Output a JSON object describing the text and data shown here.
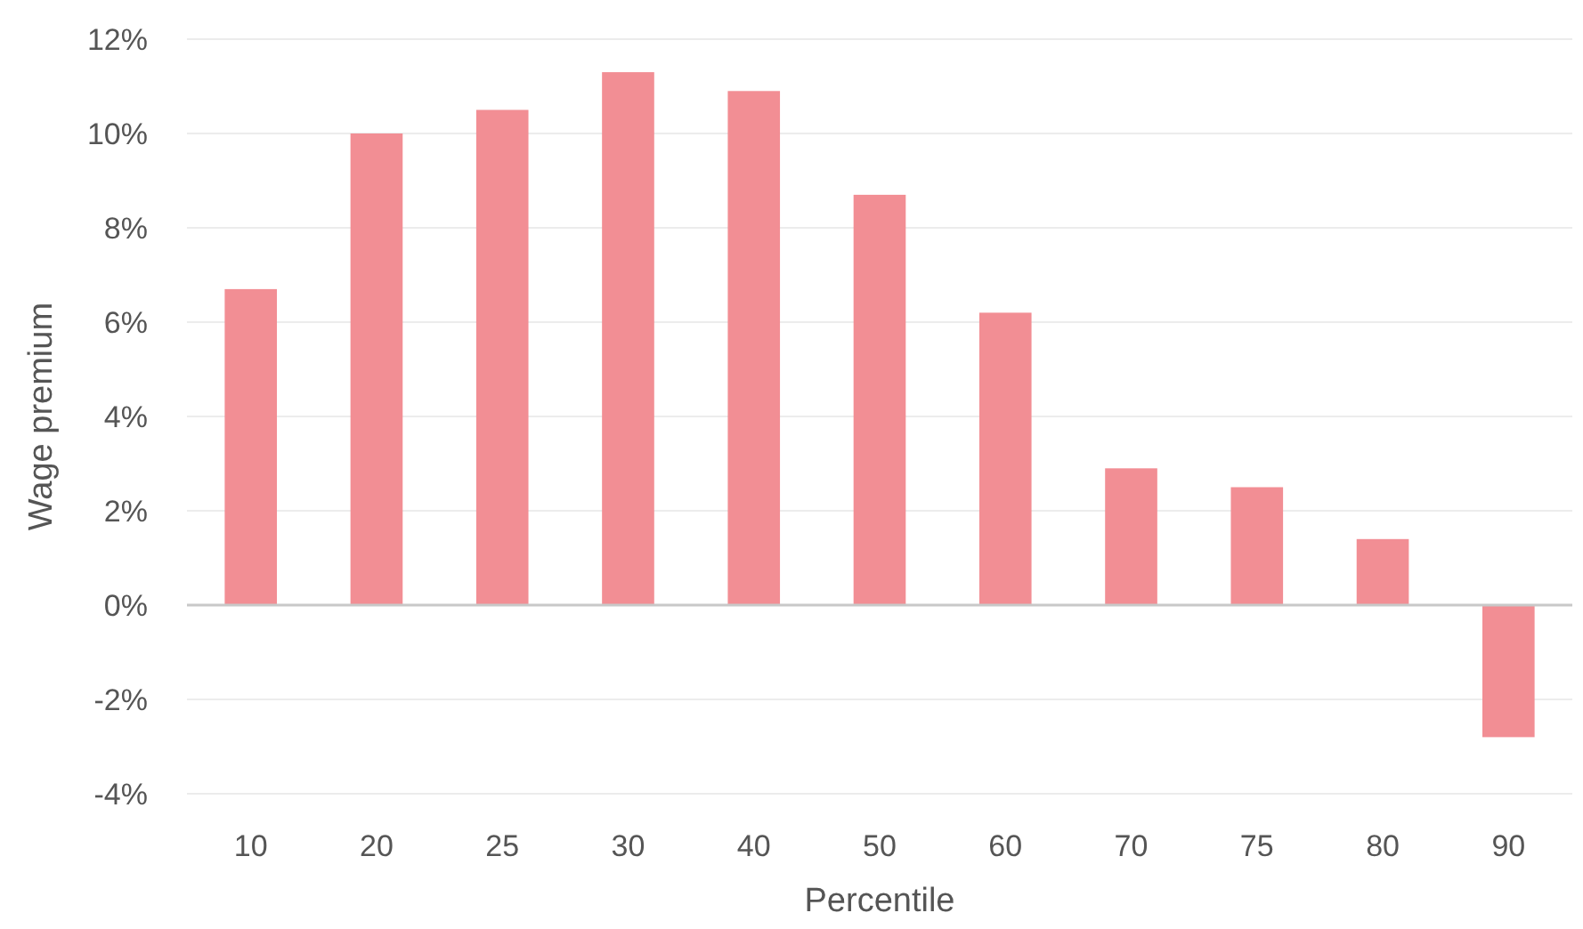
{
  "chart_data": {
    "type": "bar",
    "xlabel": "Percentile",
    "ylabel": "Wage premium",
    "categories": [
      "10",
      "20",
      "25",
      "30",
      "40",
      "50",
      "60",
      "70",
      "75",
      "80",
      "90"
    ],
    "values": [
      6.7,
      10.0,
      10.5,
      11.3,
      10.9,
      8.7,
      6.2,
      2.9,
      2.5,
      1.4,
      -2.8
    ],
    "color": "#f28e94",
    "ylim": [
      -4,
      12
    ],
    "yticks": [
      {
        "value": -4,
        "label": "-4%"
      },
      {
        "value": -2,
        "label": "-2%"
      },
      {
        "value": 0,
        "label": "0%"
      },
      {
        "value": 2,
        "label": "2%"
      },
      {
        "value": 4,
        "label": "4%"
      },
      {
        "value": 6,
        "label": "6%"
      },
      {
        "value": 8,
        "label": "8%"
      },
      {
        "value": 10,
        "label": "10%"
      },
      {
        "value": 12,
        "label": "12%"
      }
    ],
    "grid": "y"
  }
}
